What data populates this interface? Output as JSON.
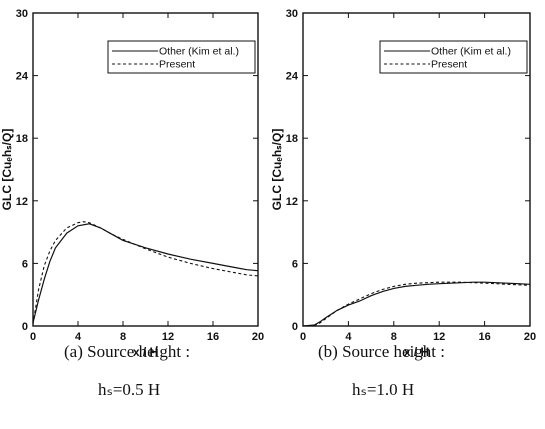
{
  "chart_data": [
    {
      "type": "line",
      "panel": "a",
      "xlabel": "x / H",
      "ylabel": "GLC [Cuₑhₛ/Q]",
      "xlim": [
        0,
        20
      ],
      "ylim": [
        0,
        30
      ],
      "xticks": [
        "0",
        "4",
        "8",
        "12",
        "16",
        "20"
      ],
      "yticks": [
        "0",
        "6",
        "12",
        "18",
        "24",
        "30"
      ],
      "legend_position": "top-right",
      "caption_line1": "(a)  Source height :",
      "caption_line2": "hₛ=0.5 H",
      "series": [
        {
          "name": "Other (Kim et al.)",
          "style": "solid",
          "x": [
            0,
            0.5,
            1,
            1.5,
            2,
            3,
            4,
            5,
            6,
            7,
            8,
            10,
            12,
            14,
            16,
            18,
            19,
            20
          ],
          "y": [
            0.3,
            2.5,
            4.5,
            6.2,
            7.5,
            8.9,
            9.6,
            9.8,
            9.4,
            8.8,
            8.2,
            7.5,
            6.9,
            6.4,
            6.0,
            5.6,
            5.4,
            5.3
          ]
        },
        {
          "name": "Present",
          "style": "dashed",
          "x": [
            0,
            0.5,
            1,
            1.5,
            2,
            3,
            4,
            4.5,
            5,
            6,
            7,
            8,
            10,
            12,
            14,
            16,
            18,
            19,
            20
          ],
          "y": [
            0.2,
            3.5,
            5.8,
            7.2,
            8.2,
            9.4,
            9.9,
            10.0,
            9.9,
            9.4,
            8.8,
            8.3,
            7.4,
            6.6,
            6.0,
            5.5,
            5.1,
            4.9,
            4.8
          ]
        }
      ]
    },
    {
      "type": "line",
      "panel": "b",
      "xlabel": "x / H",
      "ylabel": "GLC [Cuₑhₛ/Q]",
      "xlim": [
        0,
        20
      ],
      "ylim": [
        0,
        30
      ],
      "xticks": [
        "0",
        "4",
        "8",
        "12",
        "16",
        "20"
      ],
      "yticks": [
        "0",
        "6",
        "12",
        "18",
        "24",
        "30"
      ],
      "legend_position": "top-right",
      "caption_line1": "(b)  Source height :",
      "caption_line2": "hₛ=1.0 H",
      "series": [
        {
          "name": "Other (Kim et al.)",
          "style": "solid",
          "x": [
            0,
            1,
            1.5,
            2,
            3,
            4,
            5,
            6,
            7,
            8,
            9,
            10,
            11,
            12,
            13,
            14,
            15,
            16,
            17,
            18,
            19,
            20
          ],
          "y": [
            0,
            0.1,
            0.4,
            0.8,
            1.5,
            2.0,
            2.4,
            2.9,
            3.3,
            3.6,
            3.8,
            3.9,
            4.0,
            4.05,
            4.1,
            4.15,
            4.2,
            4.2,
            4.15,
            4.1,
            4.05,
            4.0
          ]
        },
        {
          "name": "Present",
          "style": "dashed",
          "x": [
            0,
            1,
            1.5,
            2,
            3,
            4,
            5,
            6,
            7,
            8,
            9,
            10,
            11,
            12,
            13,
            14,
            15,
            16,
            17,
            18,
            19,
            20
          ],
          "y": [
            0,
            0.05,
            0.3,
            0.7,
            1.5,
            2.1,
            2.6,
            3.1,
            3.5,
            3.8,
            4.0,
            4.1,
            4.15,
            4.2,
            4.2,
            4.2,
            4.15,
            4.1,
            4.05,
            4.0,
            3.95,
            3.9
          ]
        }
      ]
    }
  ]
}
